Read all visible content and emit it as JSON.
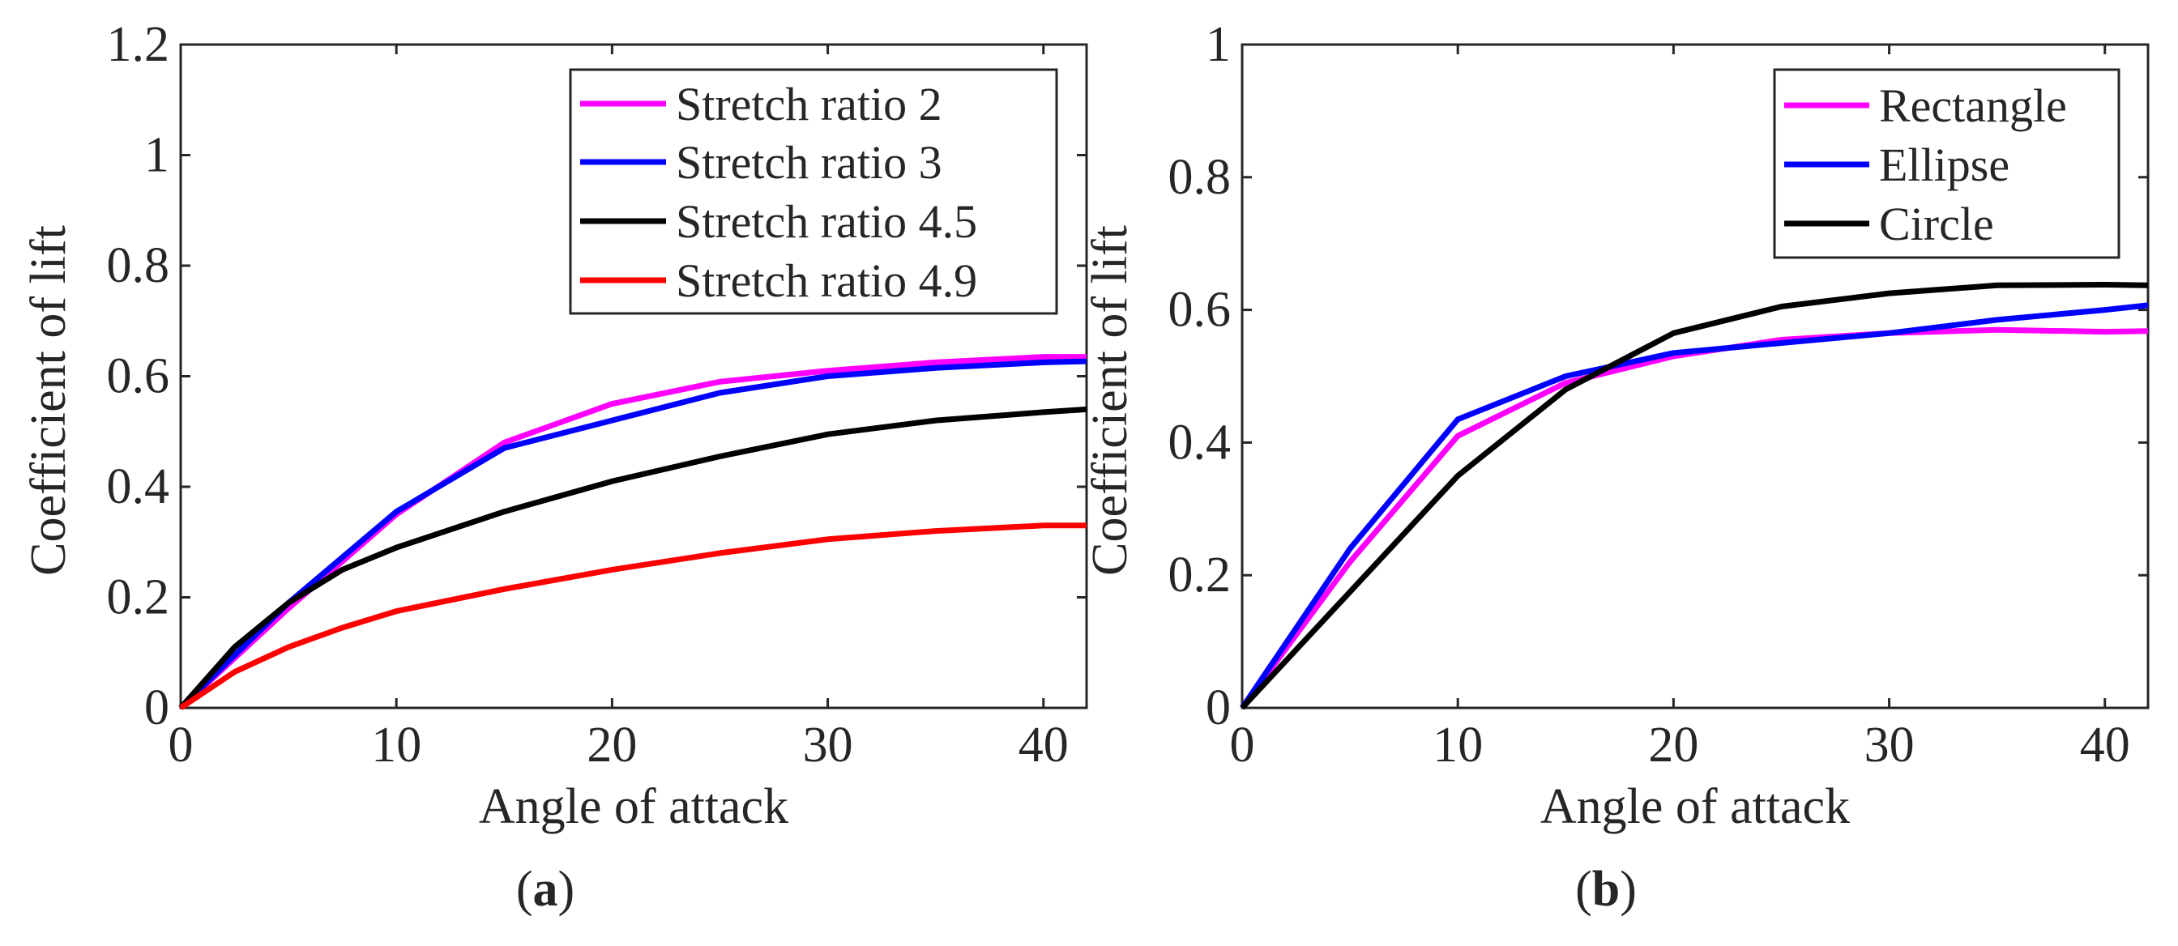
{
  "chart_data": [
    {
      "type": "line",
      "caption": "a",
      "xlabel": "Angle of attack",
      "ylabel": "Coefficient of lift",
      "xlim": [
        0,
        42
      ],
      "ylim": [
        0,
        1.2
      ],
      "xticks": [
        0,
        10,
        20,
        30,
        40
      ],
      "yticks": [
        0,
        0.2,
        0.4,
        0.6,
        0.8,
        1,
        1.2
      ],
      "xtick_labels": [
        "0",
        "10",
        "20",
        "30",
        "40"
      ],
      "ytick_labels": [
        "0",
        "0.2",
        "0.4",
        "0.6",
        "0.8",
        "1",
        "1.2"
      ],
      "grid": false,
      "legend_position": "top-right",
      "series": [
        {
          "name": "Stretch ratio 2",
          "color": "#ff00ff",
          "x": [
            0,
            5,
            10,
            15,
            20,
            25,
            30,
            35,
            40,
            42
          ],
          "y": [
            0,
            0.18,
            0.35,
            0.48,
            0.55,
            0.59,
            0.61,
            0.625,
            0.635,
            0.635
          ]
        },
        {
          "name": "Stretch ratio 3",
          "color": "#0000ff",
          "x": [
            0,
            5,
            10,
            15,
            20,
            25,
            30,
            35,
            40,
            42
          ],
          "y": [
            0,
            0.19,
            0.355,
            0.47,
            0.52,
            0.57,
            0.6,
            0.615,
            0.625,
            0.627
          ]
        },
        {
          "name": "Stretch ratio 4.5",
          "color": "#000000",
          "x": [
            0,
            2.5,
            5,
            7.5,
            10,
            15,
            20,
            25,
            30,
            35,
            40,
            42
          ],
          "y": [
            0,
            0.11,
            0.19,
            0.25,
            0.29,
            0.355,
            0.41,
            0.455,
            0.495,
            0.52,
            0.535,
            0.54
          ]
        },
        {
          "name": "Stretch ratio 4.9",
          "color": "#ff0000",
          "x": [
            0,
            2.5,
            5,
            7.5,
            10,
            15,
            20,
            25,
            30,
            35,
            40,
            42
          ],
          "y": [
            0,
            0.065,
            0.11,
            0.145,
            0.175,
            0.215,
            0.25,
            0.28,
            0.305,
            0.32,
            0.33,
            0.33
          ]
        }
      ]
    },
    {
      "type": "line",
      "caption": "b",
      "xlabel": "Angle of attack",
      "ylabel": "Coefficient of lift",
      "xlim": [
        0,
        42
      ],
      "ylim": [
        0,
        1
      ],
      "xticks": [
        0,
        10,
        20,
        30,
        40
      ],
      "yticks": [
        0,
        0.2,
        0.4,
        0.6,
        0.8,
        1
      ],
      "xtick_labels": [
        "0",
        "10",
        "20",
        "30",
        "40"
      ],
      "ytick_labels": [
        "0",
        "0.2",
        "0.4",
        "0.6",
        "0.8",
        "1"
      ],
      "grid": false,
      "legend_position": "top-right",
      "series": [
        {
          "name": "Rectangle",
          "color": "#ff00ff",
          "x": [
            0,
            5,
            10,
            15,
            20,
            25,
            30,
            35,
            40,
            42
          ],
          "y": [
            0,
            0.22,
            0.41,
            0.49,
            0.53,
            0.555,
            0.565,
            0.57,
            0.567,
            0.568
          ]
        },
        {
          "name": "Ellipse",
          "color": "#0000ff",
          "x": [
            0,
            5,
            10,
            15,
            20,
            25,
            30,
            35,
            40,
            42
          ],
          "y": [
            0,
            0.24,
            0.435,
            0.5,
            0.535,
            0.55,
            0.565,
            0.585,
            0.6,
            0.607
          ]
        },
        {
          "name": "Circle",
          "color": "#000000",
          "x": [
            0,
            5,
            10,
            15,
            20,
            25,
            30,
            35,
            40,
            42
          ],
          "y": [
            0,
            0.175,
            0.35,
            0.48,
            0.565,
            0.605,
            0.625,
            0.637,
            0.638,
            0.637
          ]
        }
      ]
    }
  ]
}
